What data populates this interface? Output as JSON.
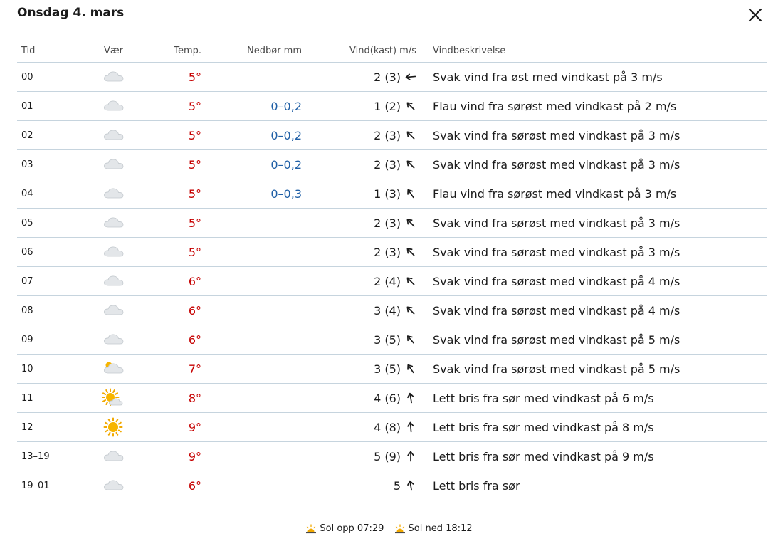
{
  "header": {
    "title": "Onsdag 4. mars"
  },
  "columns": {
    "time": "Tid",
    "weather": "Vær",
    "temp": "Temp.",
    "precip": "Nedbør mm",
    "wind": "Vind(kast) m/s",
    "desc": "Vindbeskrivelse"
  },
  "rows": [
    {
      "time": "00",
      "icon": "cloud-icon",
      "temp": "5°",
      "precip": "",
      "wind": "2 (3)",
      "wind_from_deg": 85,
      "desc": "Svak vind fra øst med vindkast på 3 m/s"
    },
    {
      "time": "01",
      "icon": "cloud-icon",
      "temp": "5°",
      "precip": "0–0,2",
      "wind": "1 (2)",
      "wind_from_deg": 135,
      "desc": "Flau vind fra sørøst med vindkast på 2 m/s"
    },
    {
      "time": "02",
      "icon": "cloud-icon",
      "temp": "5°",
      "precip": "0–0,2",
      "wind": "2 (3)",
      "wind_from_deg": 135,
      "desc": "Svak vind fra sørøst med vindkast på 3 m/s"
    },
    {
      "time": "03",
      "icon": "cloud-icon",
      "temp": "5°",
      "precip": "0–0,2",
      "wind": "2 (3)",
      "wind_from_deg": 135,
      "desc": "Svak vind fra sørøst med vindkast på 3 m/s"
    },
    {
      "time": "04",
      "icon": "cloud-icon",
      "temp": "5°",
      "precip": "0–0,3",
      "wind": "1 (3)",
      "wind_from_deg": 145,
      "desc": "Flau vind fra sørøst med vindkast på 3 m/s"
    },
    {
      "time": "05",
      "icon": "cloud-icon",
      "temp": "5°",
      "precip": "",
      "wind": "2 (3)",
      "wind_from_deg": 135,
      "desc": "Svak vind fra sørøst med vindkast på 3 m/s"
    },
    {
      "time": "06",
      "icon": "cloud-icon",
      "temp": "5°",
      "precip": "",
      "wind": "2 (3)",
      "wind_from_deg": 135,
      "desc": "Svak vind fra sørøst med vindkast på 3 m/s"
    },
    {
      "time": "07",
      "icon": "cloud-icon",
      "temp": "6°",
      "precip": "",
      "wind": "2 (4)",
      "wind_from_deg": 135,
      "desc": "Svak vind fra sørøst med vindkast på 4 m/s"
    },
    {
      "time": "08",
      "icon": "cloud-icon",
      "temp": "6°",
      "precip": "",
      "wind": "3 (4)",
      "wind_from_deg": 135,
      "desc": "Svak vind fra sørøst med vindkast på 4 m/s"
    },
    {
      "time": "09",
      "icon": "cloud-icon",
      "temp": "6°",
      "precip": "",
      "wind": "3 (5)",
      "wind_from_deg": 140,
      "desc": "Svak vind fra sørøst med vindkast på 5 m/s"
    },
    {
      "time": "10",
      "icon": "partly-cloudy-icon",
      "temp": "7°",
      "precip": "",
      "wind": "3 (5)",
      "wind_from_deg": 145,
      "desc": "Svak vind fra sørøst med vindkast på 5 m/s"
    },
    {
      "time": "11",
      "icon": "sun-cloud-icon",
      "temp": "8°",
      "precip": "",
      "wind": "4 (6)",
      "wind_from_deg": 170,
      "desc": "Lett bris fra sør med vindkast på 6 m/s"
    },
    {
      "time": "12",
      "icon": "sun-icon",
      "temp": "9°",
      "precip": "",
      "wind": "4 (8)",
      "wind_from_deg": 175,
      "desc": "Lett bris fra sør med vindkast på 8 m/s"
    },
    {
      "time": "13–19",
      "icon": "cloud-icon",
      "temp": "9°",
      "precip": "",
      "wind": "5 (9)",
      "wind_from_deg": 180,
      "desc": "Lett bris fra sør med vindkast på 9 m/s"
    },
    {
      "time": "19–01",
      "icon": "cloud-icon",
      "temp": "6°",
      "precip": "",
      "wind": "5",
      "wind_from_deg": 170,
      "desc": "Lett bris fra sør"
    }
  ],
  "footer": {
    "sunrise": "Sol opp 07:29",
    "sunset": "Sol ned 18:12"
  },
  "colors": {
    "temp": "#c60000",
    "precip": "#1f5fa6",
    "divider": "#c6d4de"
  }
}
